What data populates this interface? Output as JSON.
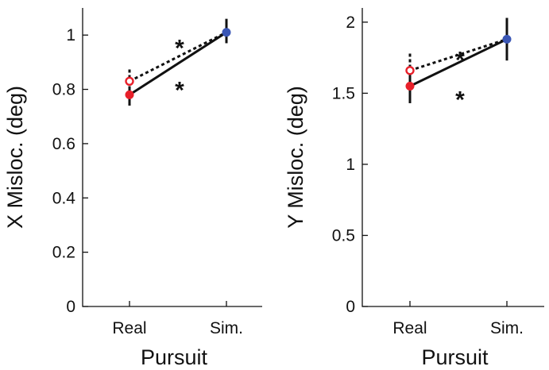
{
  "chart_data": [
    {
      "type": "line",
      "categories": [
        "Real",
        "Sim."
      ],
      "xlabel": "Pursuit",
      "ylabel": "X Misloc. (deg)",
      "ylim": [
        0,
        1.1
      ],
      "yticks": [
        0,
        0.2,
        0.4,
        0.6,
        0.8,
        1
      ],
      "ytick_labels": [
        "0",
        "0.2",
        "0.4",
        "0.6",
        "0.8",
        "1"
      ],
      "grid": false,
      "legend": "none",
      "series": [
        {
          "style": "solid",
          "color": "#111111",
          "points": [
            {
              "category": "Real",
              "value": 0.78,
              "err_low": 0.74,
              "err_high": 0.81,
              "marker": "filled",
              "marker_color": "#e8202a"
            },
            {
              "category": "Sim.",
              "value": 1.01,
              "err_low": 0.97,
              "err_high": 1.06,
              "marker": "filled",
              "marker_color": "#3a56b5"
            }
          ]
        },
        {
          "style": "dotted",
          "color": "#111111",
          "points": [
            {
              "category": "Real",
              "value": 0.83,
              "err_low": 0.8,
              "err_high": 0.88,
              "marker": "open",
              "marker_color": "#e8202a"
            },
            {
              "category": "Sim.",
              "value": 1.01,
              "marker": "none"
            }
          ]
        }
      ],
      "annotations": [
        {
          "text": "*",
          "x": 0.5,
          "y": 0.975
        },
        {
          "text": "*",
          "x": 0.5,
          "y": 0.82
        }
      ]
    },
    {
      "type": "line",
      "categories": [
        "Real",
        "Sim."
      ],
      "xlabel": "Pursuit",
      "ylabel": "Y Misloc. (deg)",
      "ylim": [
        0,
        2.1
      ],
      "yticks": [
        0,
        0.5,
        1,
        1.5,
        2
      ],
      "ytick_labels": [
        "0",
        "0.5",
        "1",
        "1.5",
        "2"
      ],
      "grid": false,
      "legend": "none",
      "series": [
        {
          "style": "solid",
          "color": "#111111",
          "points": [
            {
              "category": "Real",
              "value": 1.55,
              "err_low": 1.43,
              "err_high": 1.65,
              "marker": "filled",
              "marker_color": "#e8202a"
            },
            {
              "category": "Sim.",
              "value": 1.88,
              "err_low": 1.73,
              "err_high": 2.03,
              "marker": "filled",
              "marker_color": "#3a56b5"
            }
          ]
        },
        {
          "style": "dotted",
          "color": "#111111",
          "points": [
            {
              "category": "Real",
              "value": 1.66,
              "err_low": 1.6,
              "err_high": 1.79,
              "marker": "open",
              "marker_color": "#e8202a"
            },
            {
              "category": "Sim.",
              "value": 1.88,
              "marker": "none"
            }
          ]
        }
      ],
      "annotations": [
        {
          "text": "*",
          "x": 0.5,
          "y": 1.78
        },
        {
          "text": "*",
          "x": 0.5,
          "y": 1.5
        }
      ]
    }
  ]
}
